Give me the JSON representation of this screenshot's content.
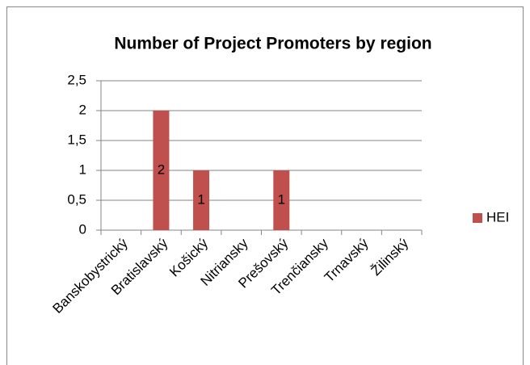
{
  "chart_data": {
    "type": "bar",
    "title": "Number of Project Promoters by region",
    "categories": [
      "Banskobystrický",
      "Bratislavský",
      "Košický",
      "Nitriansky",
      "Prešovský",
      "Trenčiansky",
      "Trnavský",
      "Žilinský"
    ],
    "series": [
      {
        "name": "HEI",
        "color": "#c0504d",
        "values": [
          0,
          2,
          1,
          0,
          1,
          0,
          0,
          0
        ]
      }
    ],
    "ylim": [
      0,
      2.5
    ],
    "yticks": [
      0,
      {
        "value": 0.5,
        "label": "0,5"
      },
      1,
      {
        "value": 1.5,
        "label": "1,5"
      },
      2,
      {
        "value": 2.5,
        "label": "2,5"
      }
    ],
    "grid": true,
    "legend": "right"
  }
}
